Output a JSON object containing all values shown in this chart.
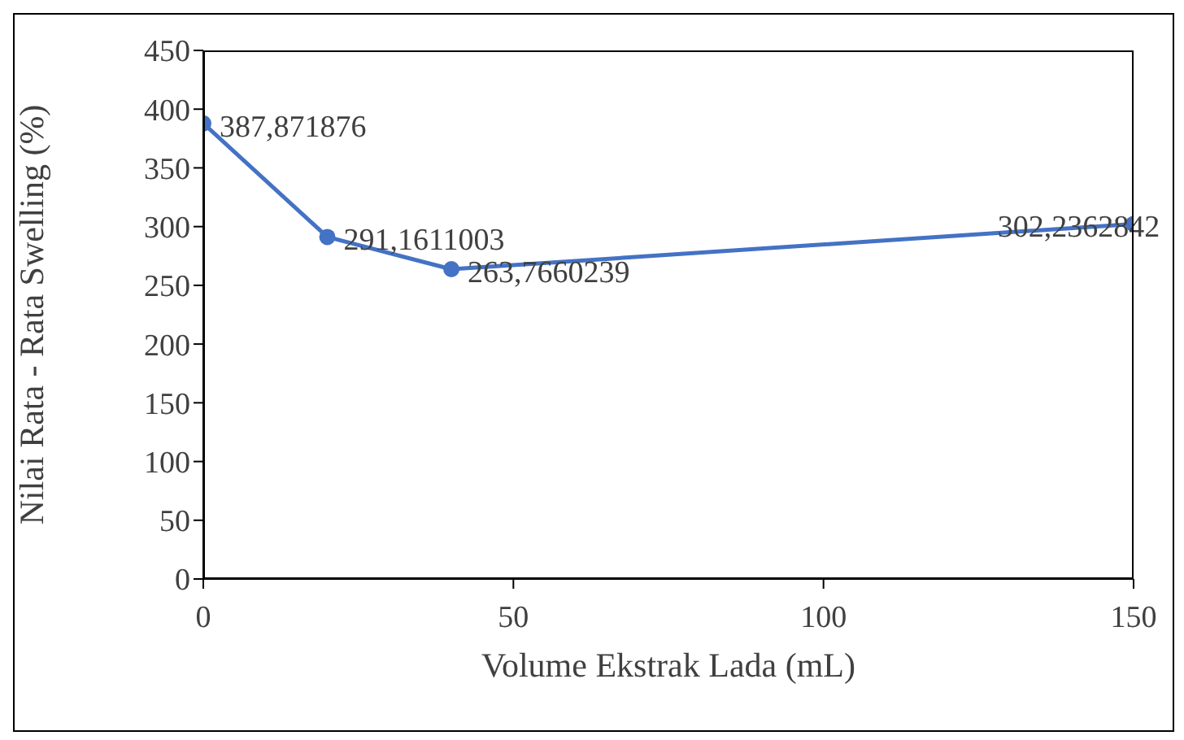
{
  "chart_data": {
    "type": "line",
    "xlabel": "Volume Ekstrak Lada (mL)",
    "ylabel": "Nilai Rata - Rata Swelling (%)",
    "x": [
      0,
      20,
      40,
      150
    ],
    "series": [
      {
        "color": "#4472c4",
        "values": [
          387.871876,
          291.1611003,
          263.7660239,
          302.2362842
        ],
        "value_labels": [
          "387,871876",
          "291,1611003",
          "263,7660239",
          "302,2362842"
        ]
      }
    ],
    "xlim": [
      0,
      150
    ],
    "xticks": [
      0,
      50,
      100,
      150
    ],
    "ylim": [
      0,
      450
    ],
    "yticks": [
      0,
      50,
      100,
      150,
      200,
      250,
      300,
      350,
      400,
      450
    ],
    "marker": "circle",
    "line_style": "solid"
  }
}
